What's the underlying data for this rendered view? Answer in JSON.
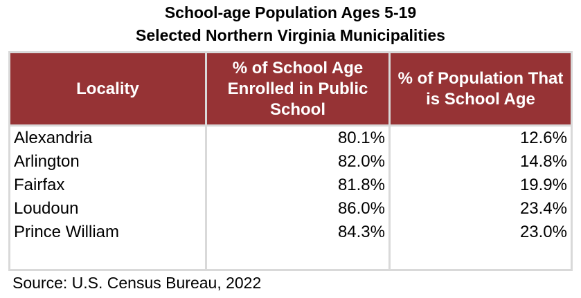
{
  "chart_data": {
    "type": "table",
    "title": [
      "School-age Population Ages 5-19",
      "Selected Northern Virginia Municipalities"
    ],
    "columns": [
      {
        "key": "locality",
        "label": "Locality"
      },
      {
        "key": "enrolled",
        "label": "% of School Age Enrolled in Public School"
      },
      {
        "key": "school_age",
        "label": "% of Population That is School Age"
      }
    ],
    "rows": [
      {
        "locality": "Alexandria",
        "enrolled": "80.1%",
        "school_age": "12.6%"
      },
      {
        "locality": "Arlington",
        "enrolled": "82.0%",
        "school_age": "14.8%"
      },
      {
        "locality": "Fairfax",
        "enrolled": "81.8%",
        "school_age": "19.9%"
      },
      {
        "locality": "Loudoun",
        "enrolled": "86.0%",
        "school_age": "23.4%"
      },
      {
        "locality": "Prince William",
        "enrolled": "84.3%",
        "school_age": "23.0%"
      }
    ],
    "values": {
      "enrolled_pct": [
        80.1,
        82.0,
        81.8,
        86.0,
        84.3
      ],
      "school_age_pct": [
        12.6,
        14.8,
        19.9,
        23.4,
        23.0
      ]
    },
    "source": "Source: U.S. Census Bureau, 2022"
  },
  "colors": {
    "header_bg": "#963335",
    "header_text": "#ffffff",
    "border": "#d9d9d9"
  }
}
